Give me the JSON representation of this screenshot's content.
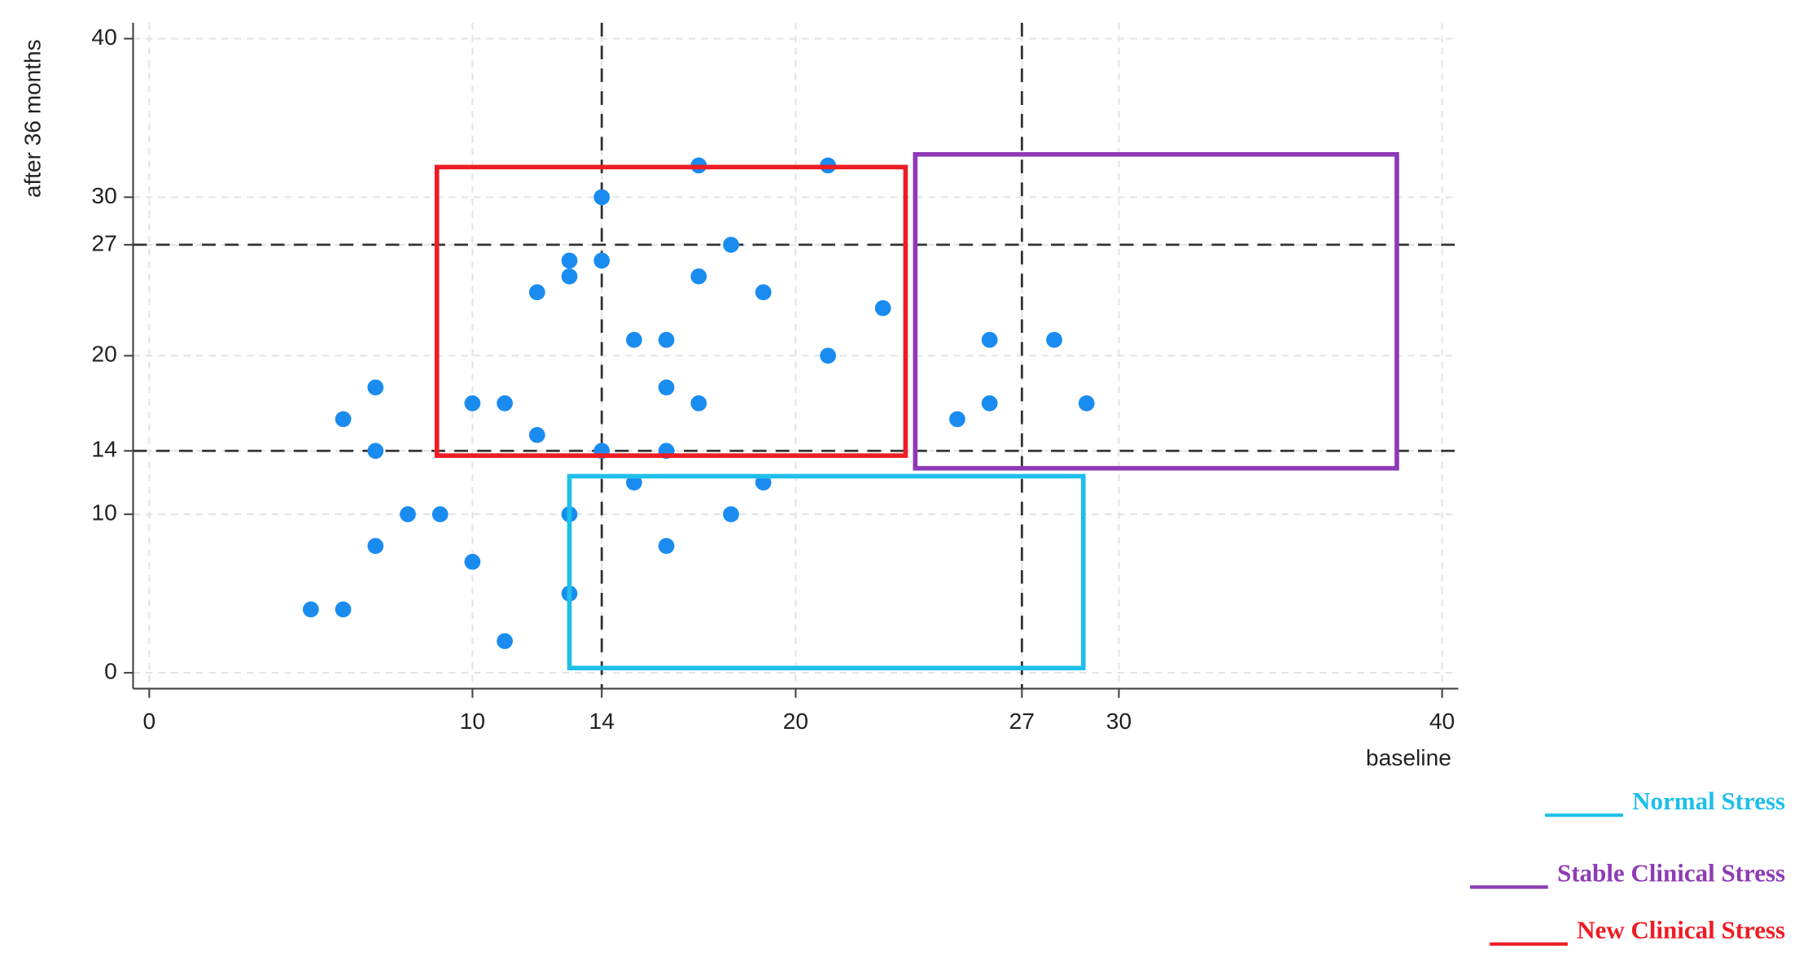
{
  "chart_data": {
    "type": "scatter",
    "x_label": "baseline",
    "y_label": "after 36 months",
    "xlim": [
      -0.5,
      40.5
    ],
    "ylim": [
      -1,
      41
    ],
    "xticks": [
      0,
      10,
      14,
      20,
      27,
      30,
      40
    ],
    "yticks": [
      0,
      10,
      14,
      20,
      27,
      30,
      40
    ],
    "grid": true,
    "reference_x": [
      14,
      27
    ],
    "reference_y": [
      14,
      27
    ],
    "series": [
      {
        "color": "#1a8cf0",
        "x": [
          5,
          6,
          6,
          7,
          7,
          7,
          8,
          9,
          10,
          10,
          11,
          11,
          12,
          12,
          13,
          13,
          13,
          13,
          14,
          14,
          14,
          15,
          15,
          16,
          16,
          16,
          16,
          17,
          17,
          17,
          18,
          18,
          19,
          19,
          21,
          21,
          22.7,
          25,
          26,
          26,
          28,
          29
        ],
        "values": [
          4,
          4,
          16,
          8,
          14,
          18,
          10,
          10,
          7,
          17,
          2,
          17,
          15,
          24,
          5,
          10,
          25,
          26,
          14,
          26,
          30,
          12,
          21,
          8,
          14,
          18,
          21,
          17,
          25,
          32,
          10,
          27,
          12,
          24,
          20,
          32,
          23,
          16,
          17,
          21,
          21,
          17
        ]
      }
    ],
    "regions": [
      {
        "name": "Normal Stress",
        "color": "#1ebfea",
        "x0": 13,
        "x1": 28.9,
        "y0": 0.3,
        "y1": 12.4
      },
      {
        "name": "Stable Clinical Stress",
        "color": "#8e3bb5",
        "x0": 23.7,
        "x1": 38.6,
        "y0": 12.9,
        "y1": 32.7
      },
      {
        "name": "New Clinical Stress",
        "color": "#ee1c24",
        "x0": 8.9,
        "x1": 23.4,
        "y0": 13.7,
        "y1": 31.9
      }
    ]
  }
}
